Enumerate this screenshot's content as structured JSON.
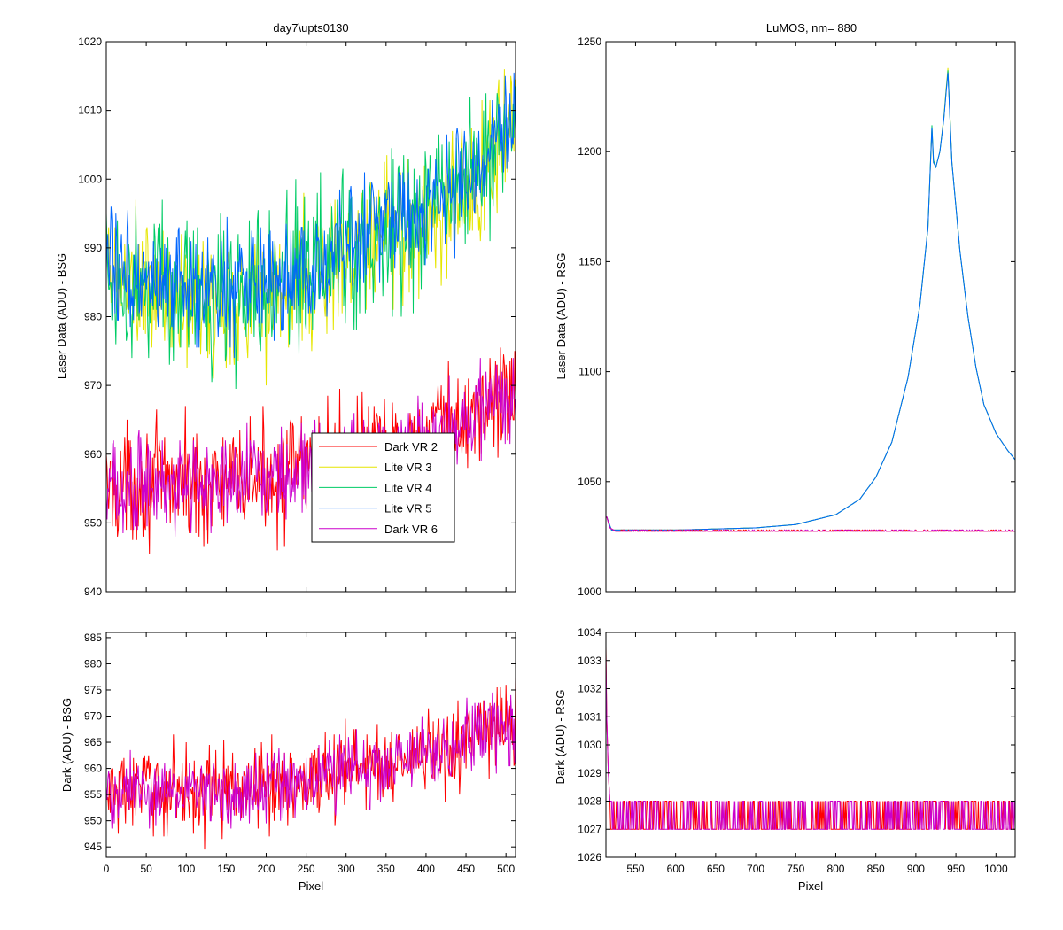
{
  "figure": {
    "background": "#ffffff",
    "series_colors": {
      "Dark VR 2": "#ff0000",
      "Lite VR 3": "#e6e600",
      "Lite VR 4": "#00cc66",
      "Lite VR 5": "#0066ff",
      "Dark VR 6": "#cc00cc"
    }
  },
  "chart_data": [
    {
      "id": "tl",
      "type": "line",
      "title": "day7\\upts0130",
      "xlabel": "",
      "ylabel": "Laser Data (ADU) - BSG",
      "xlim": [
        0,
        512
      ],
      "ylim": [
        940,
        1020
      ],
      "xticks": [
        0,
        50,
        100,
        150,
        200,
        250,
        300,
        350,
        400,
        450,
        500
      ],
      "show_xticklabels": false,
      "yticks": [
        940,
        950,
        960,
        970,
        980,
        990,
        1000,
        1010,
        1020
      ],
      "legend_placement": "center-right",
      "legend": [
        "Dark VR 2",
        "Lite VR 3",
        "Lite VR 4",
        "Lite VR 5",
        "Dark VR 6"
      ],
      "series": [
        {
          "name": "Dark VR 2",
          "color": "#ff0000",
          "x": [
            0,
            50,
            100,
            150,
            200,
            250,
            300,
            350,
            400,
            450,
            500,
            512
          ],
          "mean": [
            955,
            956,
            956,
            955.5,
            956.5,
            958,
            960,
            961,
            962,
            965,
            969,
            968
          ],
          "noise": 6
        },
        {
          "name": "Lite VR 3",
          "color": "#e6e600",
          "x": [
            0,
            50,
            100,
            150,
            200,
            250,
            300,
            350,
            400,
            450,
            500,
            512
          ],
          "mean": [
            986,
            983,
            982,
            982,
            983,
            985,
            988,
            991,
            994,
            998,
            1006,
            1008
          ],
          "noise": 8
        },
        {
          "name": "Lite VR 4",
          "color": "#00cc66",
          "x": [
            0,
            50,
            100,
            150,
            200,
            250,
            300,
            350,
            400,
            450,
            500,
            512
          ],
          "mean": [
            987,
            984,
            983,
            983,
            984,
            986,
            989,
            992,
            995,
            999,
            1007,
            1009
          ],
          "noise": 8
        },
        {
          "name": "Lite VR 5",
          "color": "#0066ff",
          "x": [
            0,
            50,
            100,
            150,
            200,
            250,
            300,
            350,
            400,
            450,
            500,
            512
          ],
          "mean": [
            988,
            985,
            984,
            984,
            985,
            987,
            990,
            993,
            996,
            1000,
            1007,
            1009
          ],
          "noise": 6
        },
        {
          "name": "Dark VR 6",
          "color": "#cc00cc",
          "x": [
            0,
            50,
            100,
            150,
            200,
            250,
            300,
            350,
            400,
            450,
            500,
            512
          ],
          "mean": [
            955,
            955.5,
            956,
            956,
            956.5,
            957.5,
            959.5,
            960.5,
            962,
            965,
            969,
            968
          ],
          "noise": 5
        }
      ]
    },
    {
      "id": "tr",
      "type": "line",
      "title": "LuMOS, nm= 880",
      "xlabel": "",
      "ylabel": "Laser Data (ADU) - RSG",
      "xlim": [
        513,
        1024
      ],
      "ylim": [
        1000,
        1250
      ],
      "xticks": [
        550,
        600,
        650,
        700,
        750,
        800,
        850,
        900,
        950,
        1000
      ],
      "show_xticklabels": false,
      "yticks": [
        1000,
        1050,
        1100,
        1150,
        1200,
        1250
      ],
      "series": [
        {
          "name": "Lite VR 3",
          "color": "#e6e600",
          "x": [
            514,
            520,
            550,
            600,
            650,
            700,
            750,
            800,
            830,
            850,
            870,
            890,
            905,
            915,
            920,
            922,
            925,
            930,
            935,
            940,
            945,
            955,
            965,
            975,
            985,
            1000,
            1015,
            1024
          ],
          "y": [
            1034,
            1028,
            1028,
            1028,
            1028.5,
            1029,
            1030.5,
            1035,
            1042,
            1052,
            1068,
            1097,
            1130,
            1165,
            1210,
            1195,
            1193,
            1200,
            1216,
            1238,
            1195,
            1155,
            1125,
            1102,
            1085,
            1072,
            1064,
            1060
          ]
        },
        {
          "name": "Lite VR 4",
          "color": "#00cc66",
          "x": [
            514,
            520,
            550,
            600,
            650,
            700,
            750,
            800,
            830,
            850,
            870,
            890,
            905,
            915,
            920,
            922,
            925,
            930,
            935,
            940,
            945,
            955,
            965,
            975,
            985,
            1000,
            1015,
            1024
          ],
          "y": [
            1034,
            1028,
            1028,
            1028,
            1028.5,
            1029,
            1030.5,
            1035,
            1042,
            1052,
            1068,
            1097,
            1130,
            1165,
            1212,
            1196,
            1193,
            1200,
            1215,
            1237,
            1195,
            1155,
            1125,
            1102,
            1085,
            1072,
            1064,
            1060
          ]
        },
        {
          "name": "Lite VR 5",
          "color": "#0066ff",
          "x": [
            514,
            520,
            550,
            600,
            650,
            700,
            750,
            800,
            830,
            850,
            870,
            890,
            905,
            915,
            920,
            922,
            925,
            930,
            935,
            940,
            945,
            955,
            965,
            975,
            985,
            1000,
            1015,
            1024
          ],
          "y": [
            1034,
            1028,
            1028,
            1028,
            1028.5,
            1029,
            1030.5,
            1035,
            1042,
            1052,
            1068,
            1097,
            1130,
            1165,
            1211,
            1195,
            1193,
            1200,
            1215,
            1236,
            1195,
            1155,
            1125,
            1102,
            1085,
            1072,
            1064,
            1060
          ]
        },
        {
          "name": "Dark VR 2",
          "color": "#ff0000",
          "x": [
            514,
            518,
            525,
            1024
          ],
          "y": [
            1034,
            1029,
            1027.5,
            1027.5
          ]
        },
        {
          "name": "Dark VR 6",
          "color": "#cc00cc",
          "x": [
            514,
            518,
            525,
            1024
          ],
          "y": [
            1034,
            1029,
            1027.5,
            1027.5
          ]
        }
      ]
    },
    {
      "id": "bl",
      "type": "line",
      "title": "",
      "xlabel": "Pixel",
      "ylabel": "Dark (ADU) - BSG",
      "xlim": [
        0,
        512
      ],
      "ylim": [
        943,
        986
      ],
      "xticks": [
        0,
        50,
        100,
        150,
        200,
        250,
        300,
        350,
        400,
        450,
        500
      ],
      "show_xticklabels": true,
      "yticks": [
        945,
        950,
        955,
        960,
        965,
        970,
        975,
        980,
        985
      ],
      "series": [
        {
          "name": "Dark VR 2",
          "color": "#ff0000",
          "x": [
            0,
            50,
            100,
            150,
            200,
            250,
            300,
            350,
            400,
            450,
            500,
            512
          ],
          "mean": [
            955,
            956,
            956,
            955.5,
            956.5,
            958,
            960,
            961,
            962,
            965,
            969,
            968
          ],
          "noise": 6
        },
        {
          "name": "Dark VR 6",
          "color": "#cc00cc",
          "x": [
            0,
            50,
            100,
            150,
            200,
            250,
            300,
            350,
            400,
            450,
            500,
            512
          ],
          "mean": [
            955,
            955.5,
            956,
            956,
            956.5,
            957.5,
            959.5,
            960.5,
            962,
            965,
            969,
            968
          ],
          "noise": 5
        }
      ]
    },
    {
      "id": "br",
      "type": "line",
      "title": "",
      "xlabel": "Pixel",
      "ylabel": "Dark (ADU) - RSG",
      "xlim": [
        513,
        1024
      ],
      "ylim": [
        1026,
        1034
      ],
      "xticks": [
        550,
        600,
        650,
        700,
        750,
        800,
        850,
        900,
        950,
        1000
      ],
      "show_xticklabels": true,
      "yticks": [
        1026,
        1027,
        1028,
        1029,
        1030,
        1031,
        1032,
        1033,
        1034
      ],
      "series": [
        {
          "name": "Dark VR 2",
          "color": "#ff0000",
          "x": [
            513,
            514,
            516,
            518,
            1024
          ],
          "y": [
            1033.5,
            1031,
            1029,
            1028,
            1027
          ],
          "toggle": [
            1027,
            1028
          ]
        },
        {
          "name": "Dark VR 6",
          "color": "#cc00cc",
          "x": [
            513,
            514,
            516,
            518,
            1024
          ],
          "y": [
            1033.2,
            1031,
            1029,
            1028,
            1027
          ],
          "toggle": [
            1027,
            1028
          ]
        }
      ]
    }
  ]
}
